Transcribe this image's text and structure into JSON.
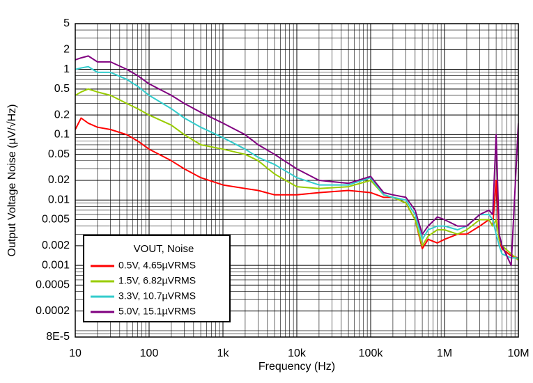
{
  "chart_data": {
    "type": "line",
    "xlabel": "Frequency (Hz)",
    "ylabel": "Output Voltage Noise (µV/√Hz)",
    "legend_title": "VOUT, Noise",
    "legend": "lower left",
    "xscale": "log",
    "yscale": "log",
    "grid": true,
    "minor_grid": true,
    "xlim": [
      10,
      10000000
    ],
    "ylim": [
      8e-05,
      5
    ],
    "xticks": [
      10,
      100,
      {
        "value": 1000,
        "label": "1k"
      },
      {
        "value": 10000,
        "label": "10k"
      },
      {
        "value": 100000,
        "label": "100k"
      },
      {
        "value": 1000000,
        "label": "1M"
      },
      {
        "value": 10000000,
        "label": "10M"
      }
    ],
    "yticks": [
      5,
      2,
      1,
      0.5,
      0.2,
      0.1,
      0.05,
      0.02,
      0.01,
      0.005,
      0.002,
      0.001,
      0.0005,
      0.0002,
      {
        "value": 8e-05,
        "label": "8E-5"
      }
    ],
    "x": [
      10,
      12,
      15,
      20,
      30,
      50,
      70,
      100,
      200,
      300,
      500,
      1000,
      2000,
      3000,
      5000,
      10000,
      20000,
      50000,
      100000,
      150000,
      200000,
      300000,
      400000,
      500000,
      600000,
      800000,
      1000000,
      1500000,
      2000000,
      3000000,
      4000000,
      4500000,
      5000000,
      5500000,
      6000000,
      8000000,
      10000000
    ],
    "series": [
      {
        "name": "0.5V, 4.65µVRMS",
        "color": "#ff0000",
        "values": [
          0.12,
          0.18,
          0.15,
          0.13,
          0.12,
          0.1,
          0.08,
          0.06,
          0.04,
          0.03,
          0.022,
          0.017,
          0.015,
          0.014,
          0.012,
          0.012,
          0.013,
          0.014,
          0.013,
          0.011,
          0.011,
          0.009,
          0.005,
          0.0018,
          0.0025,
          0.0022,
          0.0025,
          0.003,
          0.003,
          0.004,
          0.005,
          0.004,
          0.02,
          0.0025,
          0.0018,
          0.0014,
          0.0013
        ]
      },
      {
        "name": "1.5V, 6.82µVRMS",
        "color": "#99cc00",
        "values": [
          0.4,
          0.45,
          0.5,
          0.45,
          0.4,
          0.3,
          0.25,
          0.2,
          0.14,
          0.1,
          0.07,
          0.06,
          0.05,
          0.04,
          0.025,
          0.016,
          0.015,
          0.016,
          0.02,
          0.012,
          0.011,
          0.009,
          0.005,
          0.002,
          0.0028,
          0.0035,
          0.0035,
          0.003,
          0.0035,
          0.005,
          0.005,
          0.004,
          0.005,
          0.0025,
          0.002,
          0.0015,
          0.0012
        ]
      },
      {
        "name": "3.3V, 10.7µVRMS",
        "color": "#33cccc",
        "values": [
          1.0,
          1.05,
          1.1,
          0.9,
          0.9,
          0.7,
          0.55,
          0.4,
          0.25,
          0.18,
          0.13,
          0.09,
          0.06,
          0.045,
          0.035,
          0.022,
          0.017,
          0.017,
          0.022,
          0.012,
          0.011,
          0.01,
          0.006,
          0.0025,
          0.0035,
          0.004,
          0.004,
          0.0035,
          0.004,
          0.006,
          0.006,
          0.005,
          0.003,
          0.002,
          0.0015,
          0.0013,
          0.0013
        ]
      },
      {
        "name": "5.0V, 15.1µVRMS",
        "color": "#800080",
        "values": [
          1.4,
          1.5,
          1.6,
          1.3,
          1.3,
          1.0,
          0.8,
          0.6,
          0.4,
          0.3,
          0.22,
          0.15,
          0.1,
          0.07,
          0.05,
          0.03,
          0.02,
          0.018,
          0.023,
          0.013,
          0.012,
          0.011,
          0.007,
          0.003,
          0.004,
          0.0055,
          0.005,
          0.004,
          0.004,
          0.006,
          0.007,
          0.006,
          0.1,
          0.003,
          0.002,
          0.001,
          0.15
        ]
      }
    ]
  }
}
